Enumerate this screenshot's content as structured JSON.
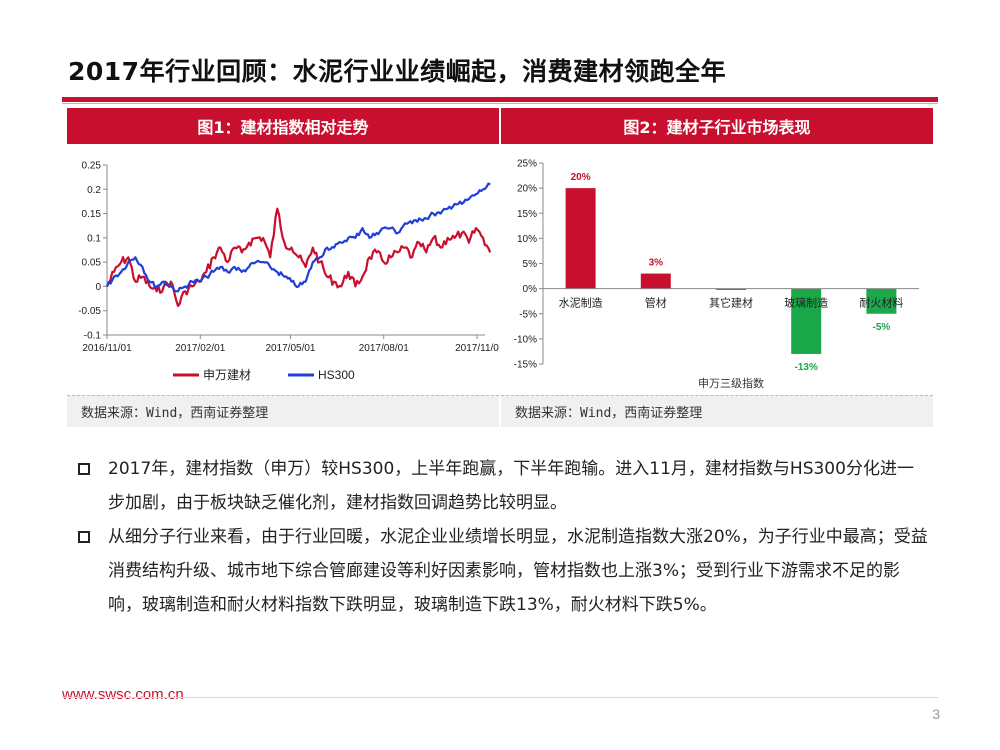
{
  "title": "2017年行业回顾：水泥行业业绩崛起，消费建材领跑全年",
  "colors": {
    "accent": "#c8102e",
    "blue": "#1f3fd8",
    "green": "#1aa84a"
  },
  "figure1": {
    "header": "图1：建材指数相对走势",
    "source": "数据来源：Wind，西南证券整理"
  },
  "figure2": {
    "header": "图2：建材子行业市场表现",
    "source": "数据来源：Wind，西南证券整理"
  },
  "chart_data": [
    {
      "type": "line",
      "y_ticks": [
        "0.25",
        "0.2",
        "0.15",
        "0.1",
        "0.05",
        "0",
        "-0.05",
        "-0.1"
      ],
      "x_ticks": [
        "2016/11/01",
        "2017/02/01",
        "2017/05/01",
        "2017/08/01",
        "2017/11/0"
      ],
      "ylim": [
        -0.1,
        0.25
      ],
      "legend_position": "bottom",
      "grid": false,
      "series": [
        {
          "name": "申万建材",
          "color": "#c8102e",
          "x": [
            "2016-11-01",
            "2016-11-08",
            "2016-11-15",
            "2016-11-22",
            "2016-11-29",
            "2016-12-06",
            "2016-12-13",
            "2016-12-20",
            "2016-12-27",
            "2017-01-03",
            "2017-01-10",
            "2017-01-17",
            "2017-01-24",
            "2017-01-31",
            "2017-02-07",
            "2017-02-14",
            "2017-02-21",
            "2017-02-28",
            "2017-03-07",
            "2017-03-14",
            "2017-03-21",
            "2017-03-28",
            "2017-04-04",
            "2017-04-11",
            "2017-04-18",
            "2017-04-25",
            "2017-05-02",
            "2017-05-09",
            "2017-05-16",
            "2017-05-23",
            "2017-05-30",
            "2017-06-06",
            "2017-06-13",
            "2017-06-20",
            "2017-06-27",
            "2017-07-04",
            "2017-07-11",
            "2017-07-18",
            "2017-07-25",
            "2017-08-01",
            "2017-08-08",
            "2017-08-15",
            "2017-08-22",
            "2017-08-29",
            "2017-09-05",
            "2017-09-12",
            "2017-09-19",
            "2017-09-26",
            "2017-10-03",
            "2017-10-10",
            "2017-10-17",
            "2017-10-24",
            "2017-10-31",
            "2017-11-07",
            "2017-11-14"
          ],
          "values": [
            0.0,
            0.03,
            0.05,
            0.06,
            0.01,
            0.02,
            0.0,
            -0.01,
            0.0,
            0.01,
            -0.04,
            -0.01,
            0.0,
            0.01,
            0.03,
            0.06,
            0.08,
            0.05,
            0.08,
            0.07,
            0.09,
            0.1,
            0.1,
            0.06,
            0.16,
            0.09,
            0.08,
            0.06,
            0.04,
            0.08,
            0.05,
            0.02,
            0.01,
            0.0,
            0.03,
            0.0,
            0.02,
            0.06,
            0.07,
            0.05,
            0.06,
            0.07,
            0.08,
            0.06,
            0.09,
            0.07,
            0.1,
            0.08,
            0.1,
            0.1,
            0.11,
            0.09,
            0.12,
            0.1,
            0.07
          ]
        },
        {
          "name": "HS300",
          "color": "#1f3fd8",
          "x": [
            "2016-11-01",
            "2016-11-08",
            "2016-11-15",
            "2016-11-22",
            "2016-11-29",
            "2016-12-06",
            "2016-12-13",
            "2016-12-20",
            "2016-12-27",
            "2017-01-03",
            "2017-01-10",
            "2017-01-17",
            "2017-01-24",
            "2017-01-31",
            "2017-02-07",
            "2017-02-14",
            "2017-02-21",
            "2017-02-28",
            "2017-03-07",
            "2017-03-14",
            "2017-03-21",
            "2017-03-28",
            "2017-04-04",
            "2017-04-11",
            "2017-04-18",
            "2017-04-25",
            "2017-05-02",
            "2017-05-09",
            "2017-05-16",
            "2017-05-23",
            "2017-05-30",
            "2017-06-06",
            "2017-06-13",
            "2017-06-20",
            "2017-06-27",
            "2017-07-04",
            "2017-07-11",
            "2017-07-18",
            "2017-07-25",
            "2017-08-01",
            "2017-08-08",
            "2017-08-15",
            "2017-08-22",
            "2017-08-29",
            "2017-09-05",
            "2017-09-12",
            "2017-09-19",
            "2017-09-26",
            "2017-10-03",
            "2017-10-10",
            "2017-10-17",
            "2017-10-24",
            "2017-10-31",
            "2017-11-07",
            "2017-11-14"
          ],
          "values": [
            0.0,
            0.02,
            0.03,
            0.05,
            0.06,
            0.04,
            0.01,
            0.0,
            0.01,
            0.0,
            -0.01,
            0.0,
            0.01,
            0.01,
            0.02,
            0.03,
            0.04,
            0.03,
            0.04,
            0.03,
            0.04,
            0.05,
            0.05,
            0.04,
            0.03,
            0.02,
            0.01,
            0.0,
            0.01,
            0.05,
            0.06,
            0.08,
            0.08,
            0.09,
            0.1,
            0.1,
            0.12,
            0.1,
            0.11,
            0.12,
            0.12,
            0.11,
            0.13,
            0.13,
            0.14,
            0.14,
            0.15,
            0.15,
            0.16,
            0.17,
            0.17,
            0.18,
            0.19,
            0.2,
            0.21
          ]
        }
      ]
    },
    {
      "type": "bar",
      "categories": [
        "水泥制造",
        "管材",
        "其它建材",
        "玻璃制造",
        "耐火材料"
      ],
      "values": [
        20,
        3,
        0,
        -13,
        -5
      ],
      "value_labels": [
        "20%",
        "3%",
        "",
        "-13%",
        "-5%"
      ],
      "y_ticks": [
        "25%",
        "20%",
        "15%",
        "10%",
        "5%",
        "0%",
        "-5%",
        "-10%",
        "-15%"
      ],
      "ylim": [
        -15,
        25
      ],
      "xlabel": "申万三级指数",
      "positive_color": "#c8102e",
      "negative_color": "#1aa84a",
      "grid": false
    }
  ],
  "bullets": [
    "2017年，建材指数（申万）较HS300，上半年跑赢，下半年跑输。进入11月，建材指数与HS300分化进一步加剧，由于板块缺乏催化剂，建材指数回调趋势比较明显。",
    "从细分子行业来看，由于行业回暖，水泥企业业绩增长明显，水泥制造指数大涨20%，为子行业中最高；受益消费结构升级、城市地下综合管廊建设等利好因素影响，管材指数也上涨3%；受到行业下游需求不足的影响，玻璃制造和耐火材料指数下跌明显，玻璃制造下跌13%，耐火材料下跌5%。"
  ],
  "footer": {
    "url": "www.swsc.com.cn",
    "page": "3"
  }
}
